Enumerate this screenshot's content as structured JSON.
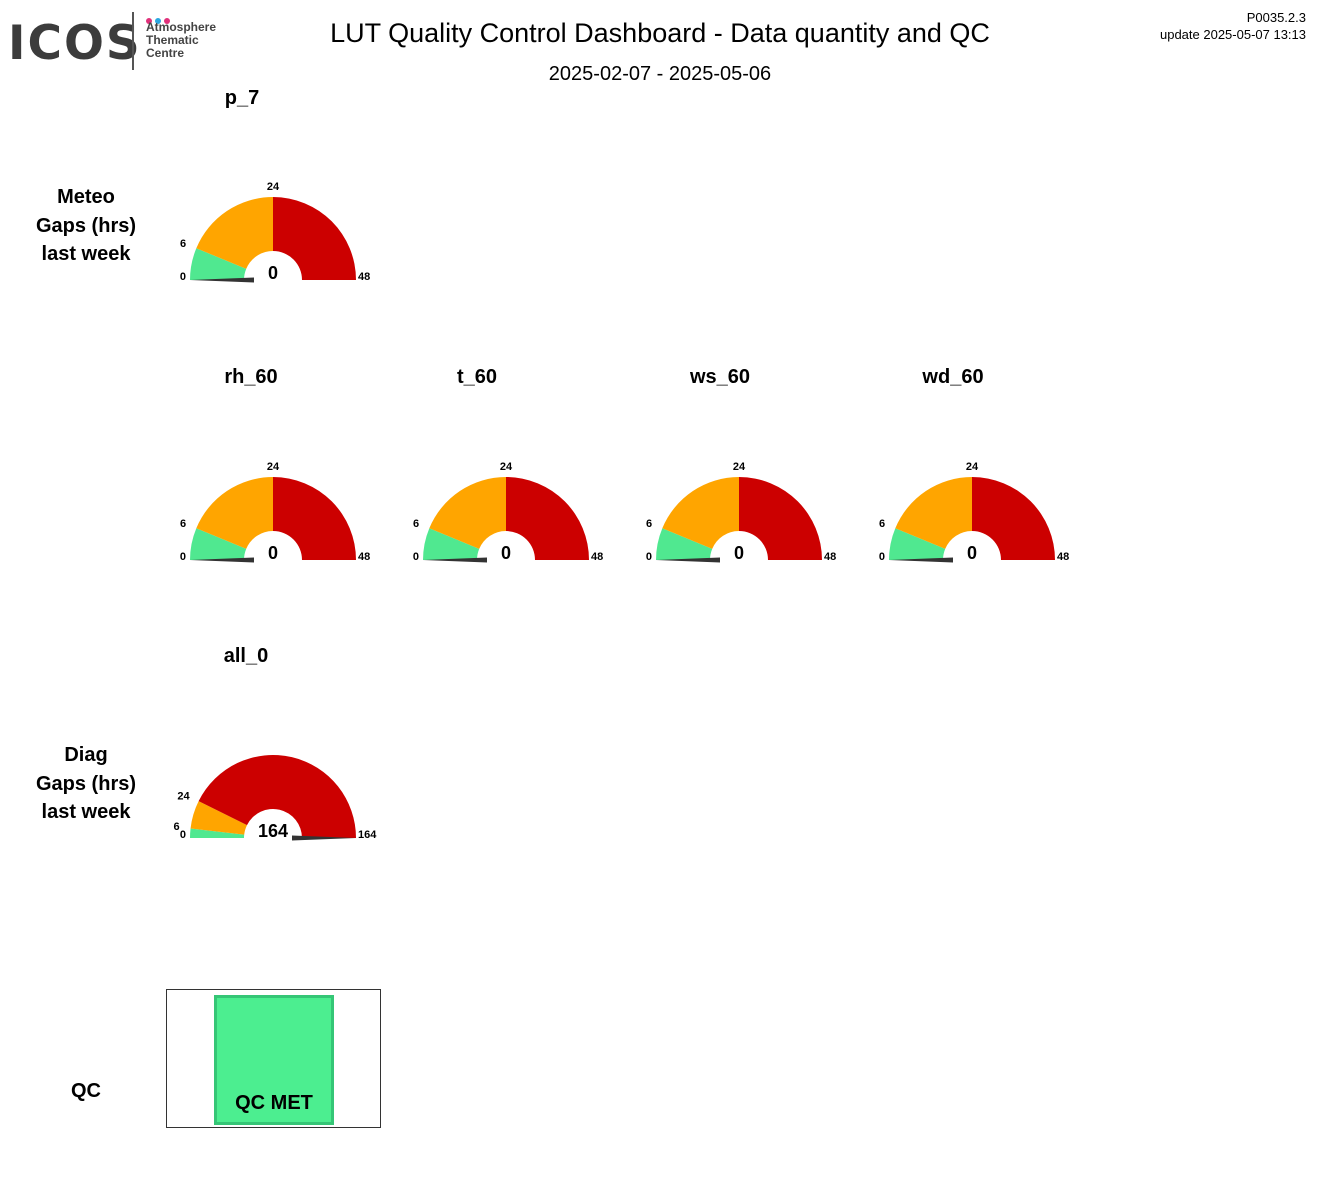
{
  "header": {
    "logo": {
      "wordmark": "ICOS",
      "lines": [
        "Atmosphere",
        "Thematic",
        "Centre"
      ],
      "dot_colors": [
        "#e0307a",
        "#2aa6e0",
        "#e0307a"
      ]
    },
    "title": "LUT  Quality Control Dashboard - Data quantity and QC",
    "date_range": "2025-02-07 - 2025-05-06",
    "version": "P0035.2.3",
    "update": "update  2025-05-07 13:13"
  },
  "colors": {
    "green": "#50e890",
    "orange": "#ffa500",
    "red": "#cc0000",
    "needle": "#333333"
  },
  "sections": {
    "meteo": {
      "label_lines": [
        "Meteo",
        "Gaps (hrs)",
        "last week"
      ]
    },
    "diag": {
      "label_lines": [
        "Diag",
        "Gaps (hrs)",
        "last week"
      ]
    },
    "qc": {
      "label": "QC",
      "status": "QC MET",
      "status_color": "#4cee90"
    }
  },
  "gauges": [
    {
      "id": "p_7",
      "title": "p_7",
      "value": 0,
      "value_label": "0",
      "bands": [
        0,
        6,
        24,
        48
      ],
      "ticks": [
        "0",
        "6",
        "24",
        "48"
      ]
    },
    {
      "id": "rh_60",
      "title": "rh_60",
      "value": 0,
      "value_label": "0",
      "bands": [
        0,
        6,
        24,
        48
      ],
      "ticks": [
        "0",
        "6",
        "24",
        "48"
      ]
    },
    {
      "id": "t_60",
      "title": "t_60",
      "value": 0,
      "value_label": "0",
      "bands": [
        0,
        6,
        24,
        48
      ],
      "ticks": [
        "0",
        "6",
        "24",
        "48"
      ]
    },
    {
      "id": "ws_60",
      "title": "ws_60",
      "value": 0,
      "value_label": "0",
      "bands": [
        0,
        6,
        24,
        48
      ],
      "ticks": [
        "0",
        "6",
        "24",
        "48"
      ]
    },
    {
      "id": "wd_60",
      "title": "wd_60",
      "value": 0,
      "value_label": "0",
      "bands": [
        0,
        6,
        24,
        48
      ],
      "ticks": [
        "0",
        "6",
        "24",
        "48"
      ]
    },
    {
      "id": "all_0",
      "title": "all_0",
      "value": 164,
      "value_label": "164",
      "bands": [
        0,
        6,
        24,
        164
      ],
      "ticks": [
        "0",
        "6",
        "24",
        "164"
      ]
    }
  ]
}
